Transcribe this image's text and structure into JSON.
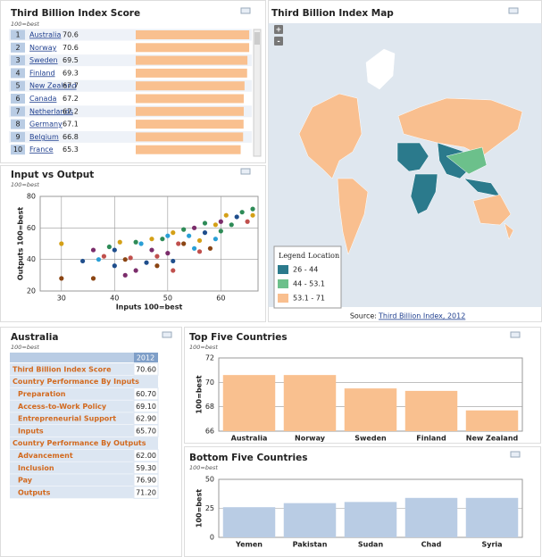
{
  "ranking": {
    "title": "Third Billion Index Score",
    "subtitle": "100=best",
    "color": "#f9c08f",
    "rows": [
      {
        "rank": 1,
        "country": "Australia",
        "score": 70.6
      },
      {
        "rank": 2,
        "country": "Norway",
        "score": 70.6
      },
      {
        "rank": 3,
        "country": "Sweden",
        "score": 69.5
      },
      {
        "rank": 4,
        "country": "Finland",
        "score": 69.3
      },
      {
        "rank": 5,
        "country": "New Zealand",
        "score": 67.7
      },
      {
        "rank": 6,
        "country": "Canada",
        "score": 67.2
      },
      {
        "rank": 7,
        "country": "Netherlands",
        "score": 67.2
      },
      {
        "rank": 8,
        "country": "Germany",
        "score": 67.1
      },
      {
        "rank": 9,
        "country": "Belgium",
        "score": 66.8
      },
      {
        "rank": 10,
        "country": "France",
        "score": 65.3
      }
    ]
  },
  "chart_data": [
    {
      "type": "scatter",
      "title": "Input vs Output",
      "subtitle": "100=best",
      "xlabel": "Inputs 100=best",
      "ylabel": "Outputs 100=best",
      "xlim": [
        26,
        67
      ],
      "ylim": [
        20,
        80
      ],
      "xticks": [
        30,
        40,
        50,
        60
      ],
      "yticks": [
        20,
        40,
        60,
        80
      ],
      "grid": true,
      "x": [
        30,
        30,
        34,
        36,
        37,
        38,
        39,
        40,
        41,
        42,
        42,
        43,
        44,
        45,
        46,
        47,
        47,
        48,
        48,
        49,
        50,
        50,
        51,
        51,
        52,
        53,
        53,
        54,
        55,
        56,
        56,
        57,
        57,
        58,
        59,
        59,
        60,
        60,
        61,
        62,
        63,
        64,
        65,
        66,
        66,
        40,
        44,
        36,
        51,
        55
      ],
      "values": [
        50,
        28,
        39,
        46,
        40,
        42,
        48,
        46,
        51,
        30,
        40,
        41,
        51,
        50,
        38,
        46,
        53,
        42,
        36,
        53,
        55,
        44,
        57,
        39,
        50,
        59,
        50,
        55,
        60,
        52,
        45,
        63,
        57,
        47,
        62,
        53,
        64,
        58,
        68,
        62,
        67,
        70,
        64,
        72,
        68,
        36,
        33,
        28,
        33,
        47
      ],
      "colors": [
        "#d4a017",
        "#8b4513",
        "#1f4e8c",
        "#7b2d6b",
        "#2a9fd6",
        "#c0504d",
        "#2e8b57",
        "#1f4e8c",
        "#d4a017",
        "#7b2d6b",
        "#8b4513",
        "#c0504d",
        "#2e8b57",
        "#2a9fd6",
        "#1f4e8c",
        "#7b2d6b",
        "#d4a017",
        "#c0504d",
        "#8b4513",
        "#2e8b57",
        "#2a9fd6",
        "#7b2d6b",
        "#d4a017",
        "#1f4e8c",
        "#c0504d",
        "#2e8b57",
        "#8b4513",
        "#2a9fd6",
        "#7b2d6b",
        "#d4a017",
        "#c0504d",
        "#2e8b57",
        "#1f4e8c",
        "#8b4513",
        "#d4a017",
        "#2a9fd6",
        "#7b2d6b",
        "#2e8b57",
        "#d4a017",
        "#2e8b57",
        "#1f4e8c",
        "#2e8b57",
        "#c0504d",
        "#2e8b57",
        "#d4a017",
        "#1f4e8c",
        "#7b2d6b",
        "#8b4513",
        "#c0504d",
        "#2a9fd6"
      ]
    },
    {
      "type": "bar",
      "title": "Top Five Countries",
      "subtitle": "100=best",
      "ylabel": "100=best",
      "color": "#f9c08f",
      "ylim": [
        66,
        72
      ],
      "yticks": [
        66,
        68,
        70,
        72
      ],
      "grid": true,
      "categories": [
        "Australia",
        "Norway",
        "Sweden",
        "Finland",
        "New Zealand"
      ],
      "values": [
        70.6,
        70.6,
        69.5,
        69.3,
        67.7
      ]
    },
    {
      "type": "bar",
      "title": "Bottom Five Countries",
      "subtitle": "100=best",
      "ylabel": "100=best",
      "color": "#b9cce4",
      "ylim": [
        0,
        50
      ],
      "yticks": [
        0,
        25,
        50
      ],
      "grid": true,
      "categories": [
        "Yemen",
        "Pakistan",
        "Sudan",
        "Chad",
        "Syria"
      ],
      "values": [
        26,
        29.5,
        30.5,
        34,
        34
      ]
    }
  ],
  "map": {
    "title": "Third Billion Index Map",
    "zoom_in": "+",
    "zoom_out": "-",
    "legend": {
      "title": "Legend",
      "subtitle": "Location",
      "items": [
        {
          "label": "26 - 44",
          "color": "#2b7a8c"
        },
        {
          "label": "44 - 53.1",
          "color": "#6cc08b"
        },
        {
          "label": "53.1 - 71",
          "color": "#f9bf8f"
        }
      ]
    },
    "source_prefix": "Source:",
    "source_link": "Third Billion Index, 2012"
  },
  "profile": {
    "title": "Australia",
    "subtitle": "100=best",
    "year": "2012",
    "rows": [
      {
        "label": "Third Billion Index Score",
        "value": "70.60",
        "indent": false
      },
      {
        "label": "Country Performance By Inputs",
        "indent": false
      },
      {
        "label": "Preparation",
        "value": "60.70",
        "indent": true
      },
      {
        "label": "Access-to-Work Policy",
        "value": "69.10",
        "indent": true
      },
      {
        "label": "Entrepreneurial Support",
        "value": "62.90",
        "indent": true
      },
      {
        "label": "Inputs",
        "value": "65.70",
        "indent": true
      },
      {
        "label": "Country Performance By Outputs",
        "indent": false
      },
      {
        "label": "Advancement",
        "value": "62.00",
        "indent": true
      },
      {
        "label": "Inclusion",
        "value": "59.30",
        "indent": true
      },
      {
        "label": "Pay",
        "value": "76.90",
        "indent": true
      },
      {
        "label": "Outputs",
        "value": "71.20",
        "indent": true
      }
    ]
  }
}
